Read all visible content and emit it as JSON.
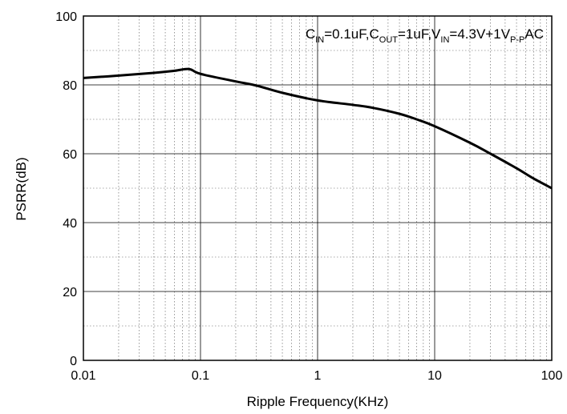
{
  "chart_data": {
    "type": "line",
    "title": "",
    "xlabel": "Ripple Frequency(KHz)",
    "ylabel": "PSRR(dB)",
    "x_scale": "log",
    "xlim": [
      0.01,
      100
    ],
    "ylim": [
      0,
      100
    ],
    "x_tick_labels": [
      "0.01",
      "0.1",
      "1",
      "10",
      "100"
    ],
    "y_tick_labels": [
      "0",
      "20",
      "40",
      "60",
      "80",
      "100"
    ],
    "grid": true,
    "annotation": {
      "parts": [
        {
          "text": "C",
          "sub": false
        },
        {
          "text": "IN",
          "sub": true
        },
        {
          "text": "=0.1uF,C",
          "sub": false
        },
        {
          "text": "OUT",
          "sub": true
        },
        {
          "text": "=1uF,V",
          "sub": false
        },
        {
          "text": "IN",
          "sub": true
        },
        {
          "text": "=4.3V+1V",
          "sub": false
        },
        {
          "text": "P-P",
          "sub": true
        },
        {
          "text": "AC",
          "sub": false
        }
      ]
    },
    "series": [
      {
        "x": [
          0.01,
          0.02,
          0.04,
          0.06,
          0.08,
          0.1,
          0.2,
          0.3,
          0.5,
          1,
          2,
          3,
          5,
          7,
          10,
          20,
          30,
          50,
          70,
          100
        ],
        "y": [
          82,
          82.7,
          83.5,
          84.1,
          84.6,
          83.2,
          81.0,
          79.8,
          77.7,
          75.5,
          74.2,
          73.3,
          71.6,
          70.0,
          68.0,
          63.2,
          60.0,
          55.8,
          52.8,
          50.0
        ]
      }
    ],
    "colors": {
      "line": "#000000",
      "grid_major": "#000000",
      "grid_minor": "#555555",
      "axes": "#000000"
    }
  }
}
